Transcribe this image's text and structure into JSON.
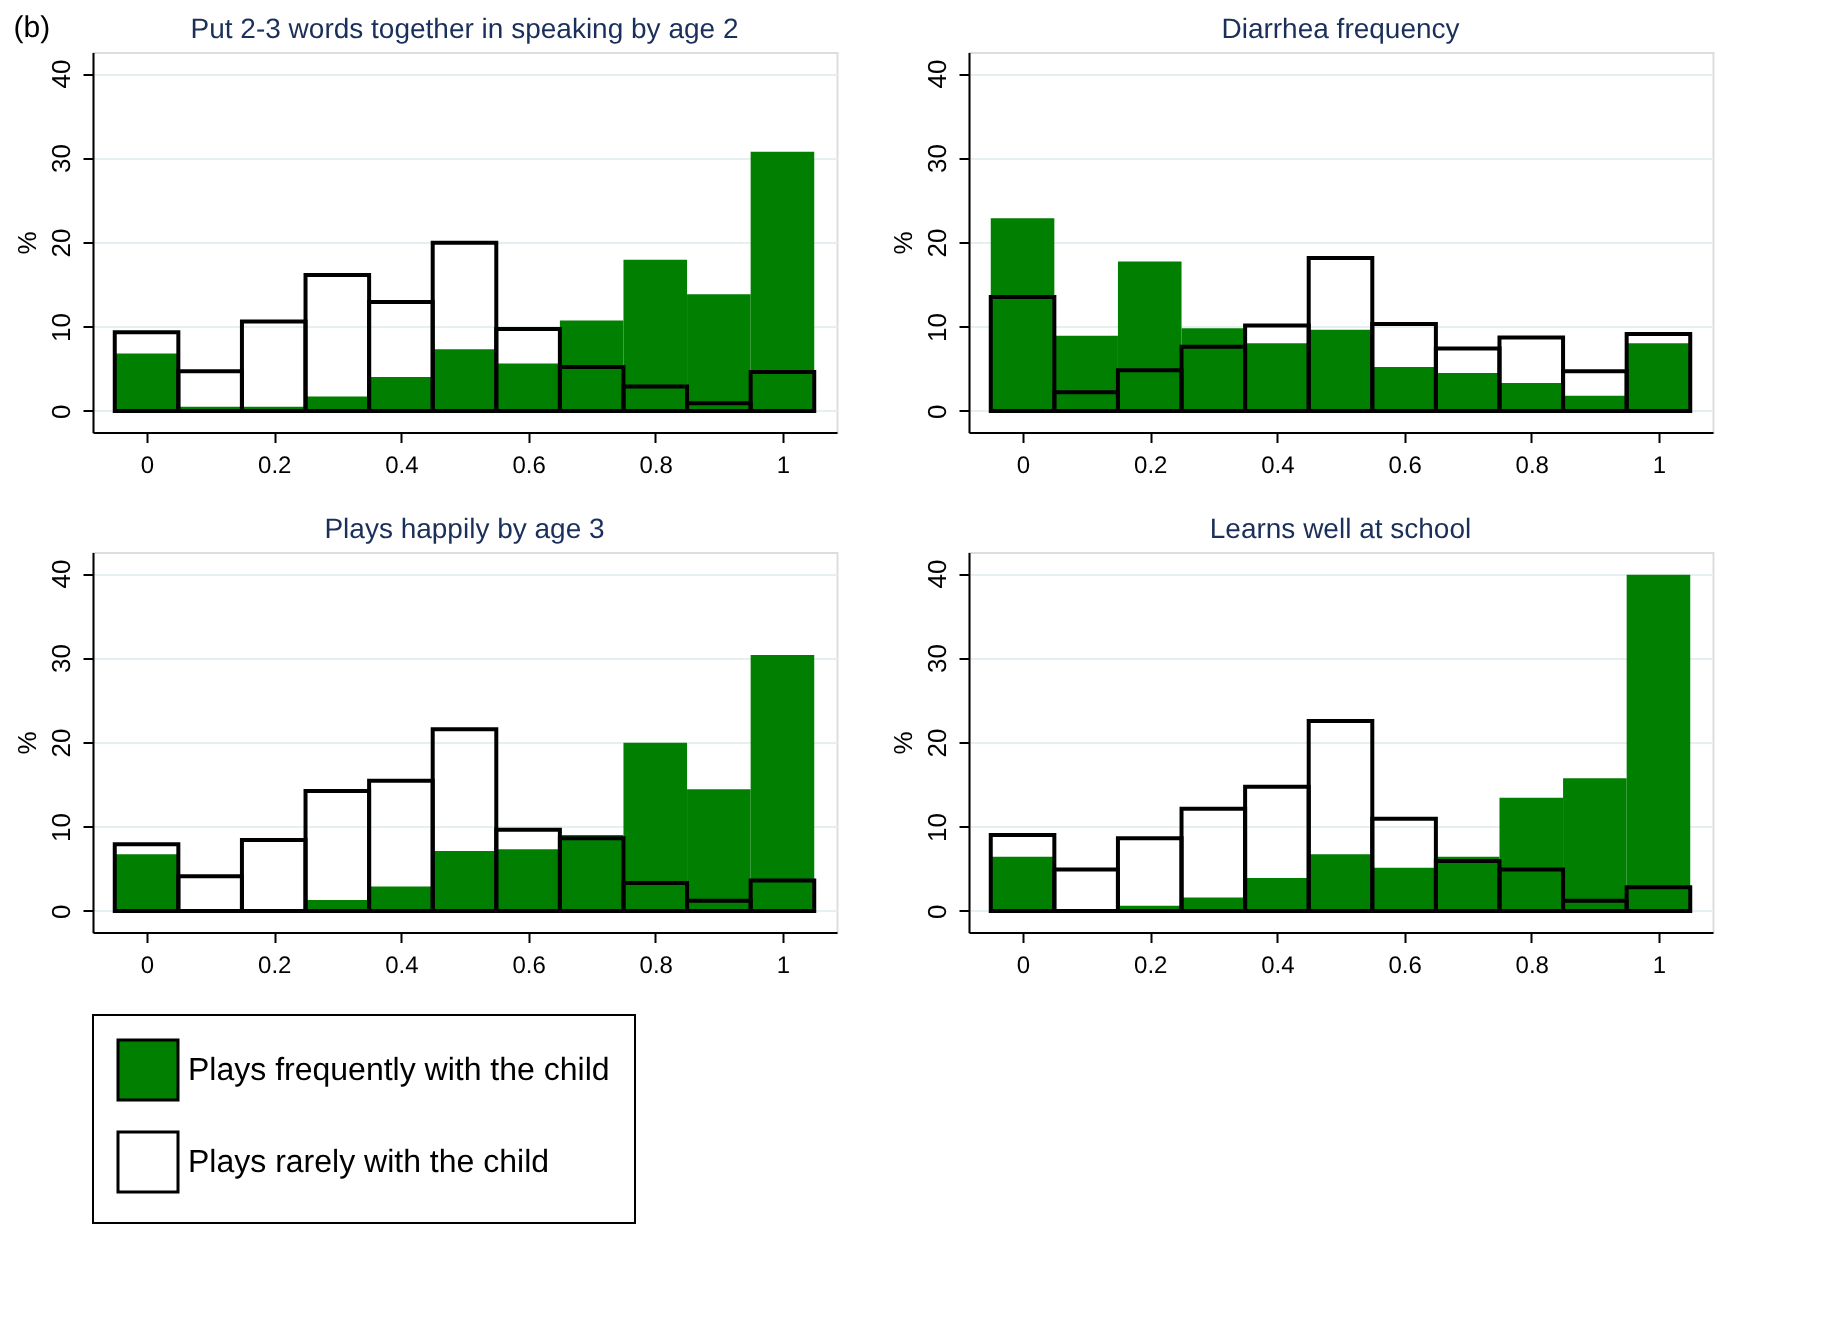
{
  "chart_data": [
    {
      "type": "histogram",
      "title": "Put 2-3 words together in speaking by age 2",
      "ylabel": "%",
      "annotations": [
        "(b)"
      ],
      "bins": [
        -0.05,
        0.05,
        0.15,
        0.25,
        0.35,
        0.45,
        0.55,
        0.65,
        0.75,
        0.85,
        0.95,
        1.05
      ],
      "xlim": [
        -0.085,
        1.085
      ],
      "ylim": [
        -2.5,
        42.5
      ],
      "xticks": [
        0,
        0.2,
        0.4,
        0.6,
        0.8,
        1
      ],
      "yticks": [
        0,
        10,
        20,
        30,
        40
      ],
      "grid": "y",
      "legend": "bottom",
      "series": [
        {
          "name": "Plays frequently with the child",
          "color": "#007f00",
          "values": [
            6.8,
            0.5,
            0.5,
            1.7,
            4.0,
            7.3,
            5.6,
            10.7,
            17.9,
            13.8,
            30.7
          ]
        },
        {
          "name": "Plays rarely with the child",
          "color": "#000000",
          "values": [
            9.3,
            4.7,
            10.6,
            16.1,
            12.9,
            19.9,
            9.7,
            5.2,
            2.9,
            0.9,
            4.6
          ]
        }
      ]
    },
    {
      "type": "histogram",
      "title": "Diarrhea frequency",
      "ylabel": "%",
      "bins": [
        -0.05,
        0.05,
        0.15,
        0.25,
        0.35,
        0.45,
        0.55,
        0.65,
        0.75,
        0.85,
        0.95,
        1.05
      ],
      "xlim": [
        -0.085,
        1.085
      ],
      "ylim": [
        -2.5,
        42.5
      ],
      "xticks": [
        0,
        0.2,
        0.4,
        0.6,
        0.8,
        1
      ],
      "yticks": [
        0,
        10,
        20,
        30,
        40
      ],
      "grid": "y",
      "series": [
        {
          "color": "#007f00",
          "values": [
            22.8,
            8.9,
            17.7,
            9.8,
            8.0,
            9.6,
            5.2,
            4.5,
            3.3,
            1.8,
            8.0
          ]
        },
        {
          "color": "#000000",
          "values": [
            13.5,
            2.2,
            4.8,
            7.6,
            10.1,
            18.1,
            10.3,
            7.4,
            8.7,
            4.7,
            9.1
          ]
        }
      ]
    },
    {
      "type": "histogram",
      "title": "Plays happily by age 3",
      "ylabel": "%",
      "bins": [
        -0.05,
        0.05,
        0.15,
        0.25,
        0.35,
        0.45,
        0.55,
        0.65,
        0.75,
        0.85,
        0.95,
        1.05
      ],
      "xlim": [
        -0.085,
        1.085
      ],
      "ylim": [
        -2.5,
        42.5
      ],
      "xticks": [
        0,
        0.2,
        0.4,
        0.6,
        0.8,
        1
      ],
      "yticks": [
        0,
        10,
        20,
        30,
        40
      ],
      "grid": "y",
      "series": [
        {
          "color": "#007f00",
          "values": [
            6.7,
            0.2,
            0.2,
            1.3,
            2.9,
            7.1,
            7.3,
            9.0,
            19.9,
            14.4,
            30.3
          ]
        },
        {
          "color": "#000000",
          "values": [
            7.9,
            4.1,
            8.4,
            14.2,
            15.4,
            21.5,
            9.6,
            8.6,
            3.3,
            1.2,
            3.6
          ]
        }
      ]
    },
    {
      "type": "histogram",
      "title": "Learns well at school",
      "ylabel": "%",
      "bins": [
        -0.05,
        0.05,
        0.15,
        0.25,
        0.35,
        0.45,
        0.55,
        0.65,
        0.75,
        0.85,
        0.95,
        1.05
      ],
      "xlim": [
        -0.085,
        1.085
      ],
      "ylim": [
        -2.5,
        42.5
      ],
      "xticks": [
        0,
        0.2,
        0.4,
        0.6,
        0.8,
        1
      ],
      "yticks": [
        0,
        10,
        20,
        30,
        40
      ],
      "grid": "y",
      "series": [
        {
          "color": "#007f00",
          "values": [
            6.4,
            0.2,
            0.6,
            1.6,
            3.9,
            6.7,
            5.1,
            6.4,
            13.4,
            15.7,
            39.8
          ]
        },
        {
          "color": "#000000",
          "values": [
            9.0,
            4.9,
            8.6,
            12.1,
            14.7,
            22.5,
            10.9,
            5.9,
            4.9,
            1.2,
            2.8
          ]
        }
      ]
    }
  ]
}
